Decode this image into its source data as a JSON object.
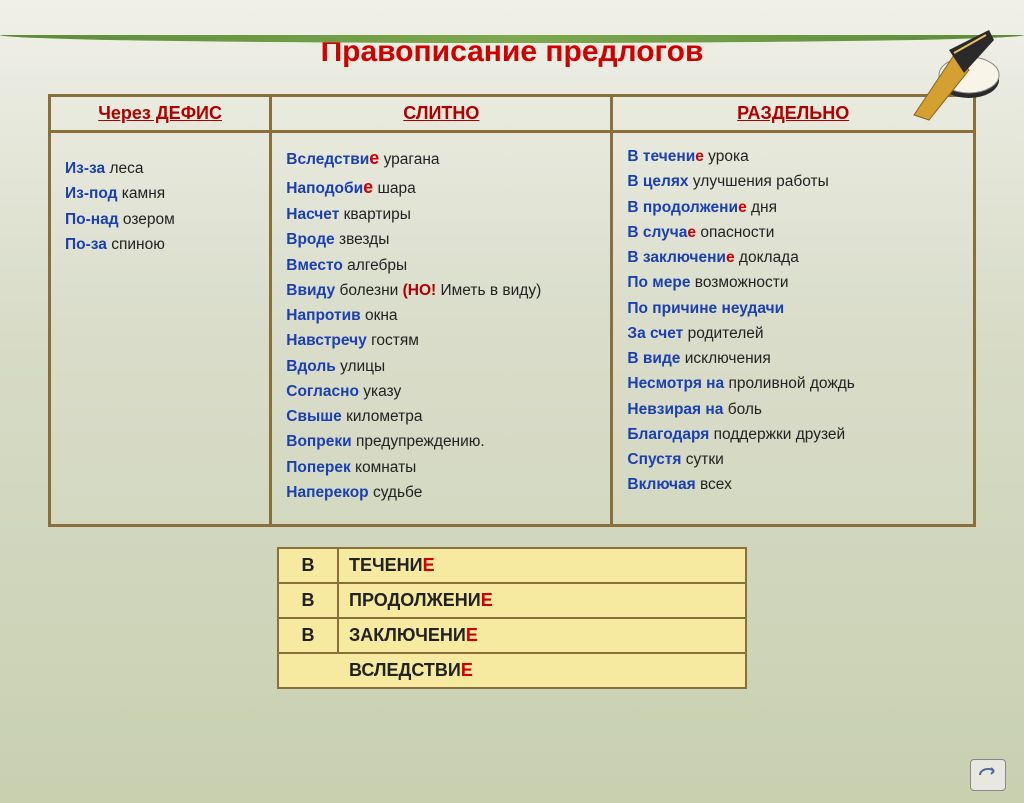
{
  "title": "Правописание предлогов",
  "headers": {
    "hyphen": "Через ДЕФИС",
    "together": "СЛИТНО",
    "separate": "РАЗДЕЛЬНО"
  },
  "hyphen_items": [
    {
      "kw": "Из-за",
      "rest": " леса"
    },
    {
      "kw": "Из-под",
      "rest": " камня"
    },
    {
      "kw": "По-над",
      "rest": " озером"
    },
    {
      "kw": "По-за",
      "rest": " спиною"
    }
  ],
  "together_items": [
    {
      "prefix": "Вследстви",
      "e": "е",
      "rest": " урагана"
    },
    {
      "prefix": "Наподоби",
      "e": "е",
      "rest": " шара"
    },
    {
      "kw": "Насчет",
      "rest": " квартиры"
    },
    {
      "kw": "Вроде",
      "rest": " звезды"
    },
    {
      "kw": "Вместо",
      "rest": " алгебры"
    },
    {
      "kw": "Ввиду",
      "rest": " болезни ",
      "note": "(НО!",
      "tail": " Иметь  в  виду)"
    },
    {
      "kw": "Напротив",
      "rest": " окна"
    },
    {
      "kw": "Навстречу",
      "rest": " гостям"
    },
    {
      "kw": "Вдоль",
      "rest": " улицы"
    },
    {
      "kw": "Согласно",
      "rest": " указу"
    },
    {
      "kw": "Свыше",
      "rest": " километра"
    },
    {
      "kw": "Вопреки",
      "rest": " предупреждению."
    },
    {
      "kw": "Поперек",
      "rest": " комнаты"
    },
    {
      "kw": "Наперекор",
      "rest": " судьбе"
    }
  ],
  "separate_items": [
    {
      "kw": "В течени",
      "kwred": "е",
      "rest": " урока"
    },
    {
      "kw": "В целях",
      "rest": " улучшения работы"
    },
    {
      "kw": "В продолжени",
      "kwred": "е",
      "rest": " дня"
    },
    {
      "kw": "В случа",
      "kwred": "е",
      "rest": " опасности"
    },
    {
      "kw": "В заключени",
      "kwred": "е",
      "rest": " доклада"
    },
    {
      "kw": "По мере",
      "rest": " возможности"
    },
    {
      "kw": "По причине",
      "rest": " ",
      "restkw": "неудачи"
    },
    {
      "kw": "За счет",
      "rest": " родителей"
    },
    {
      "kw": "В виде",
      "rest": " исключения"
    },
    {
      "kw": "Несмотря на",
      "rest": " проливной дождь"
    },
    {
      "kw": "Невзирая на",
      "rest": " боль"
    },
    {
      "kw": "Благодаря",
      "rest": " поддержки друзей"
    },
    {
      "kw": "Спустя",
      "rest": " сутки"
    },
    {
      "kw": "Включая",
      "rest": " всех"
    }
  ],
  "bottom": {
    "rows": [
      {
        "v": "В",
        "word": "ТЕЧЕНИ",
        "e": "Е"
      },
      {
        "v": "В",
        "word": "ПРОДОЛЖЕНИ",
        "e": "Е"
      },
      {
        "v": "В",
        "word": "ЗАКЛЮЧЕНИ",
        "e": "Е"
      }
    ],
    "full": {
      "word": "ВСЛЕДСТВИ",
      "e": "Е"
    }
  },
  "colors": {
    "title": "#d00000",
    "keyword": "#1a3fb0",
    "ending": "#d00000",
    "border": "#8b6f3a",
    "bottom_bg": "#f6eaa0"
  }
}
